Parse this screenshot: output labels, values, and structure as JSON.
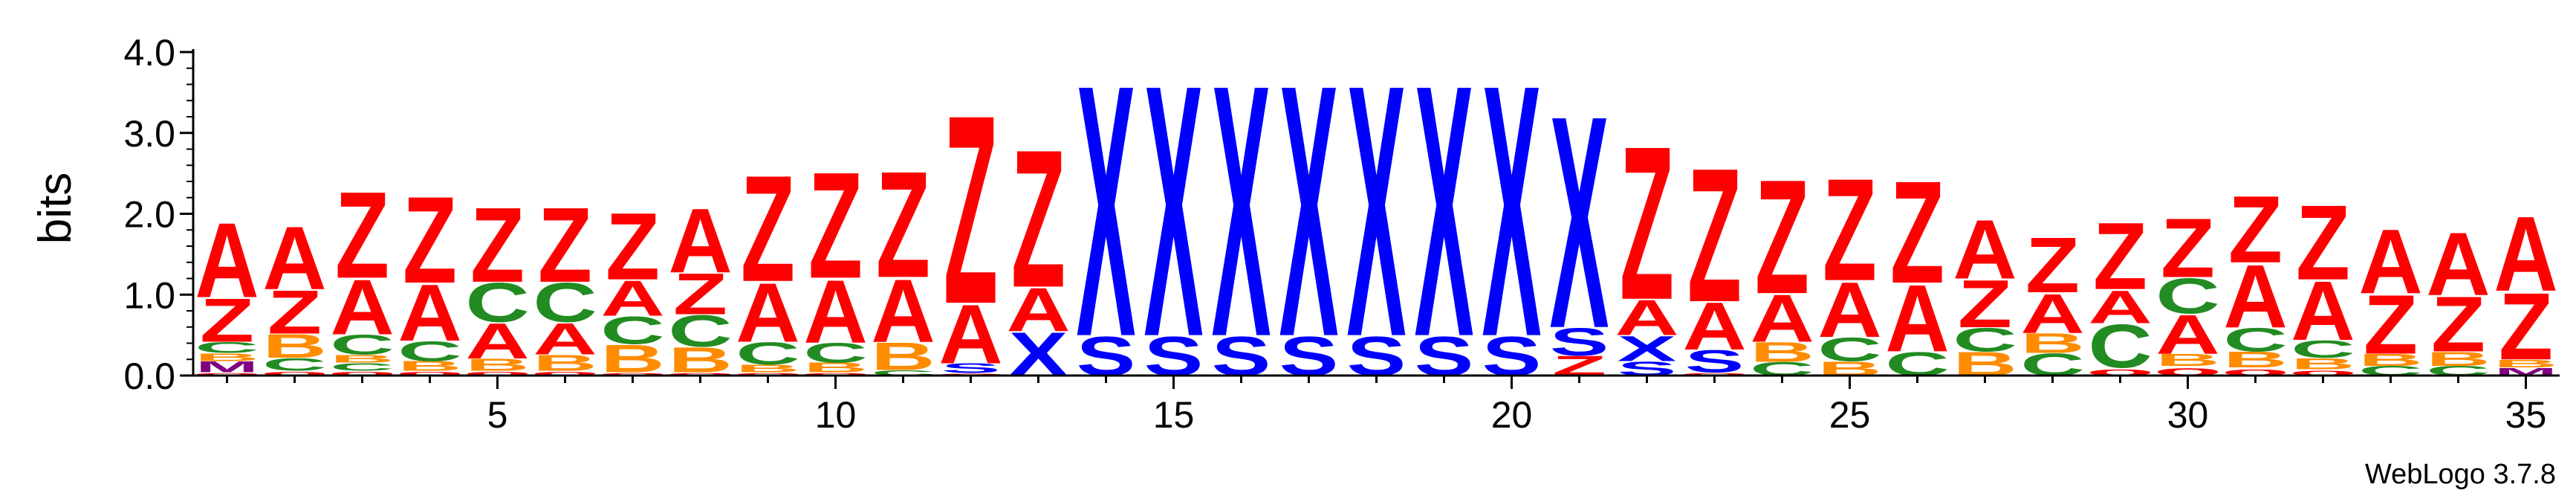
{
  "chart_data": {
    "type": "sequence_logo",
    "ylabel": "bits",
    "credit": "WebLogo 3.7.8",
    "ylim": [
      0,
      4.0
    ],
    "y_ticks": [
      "0.0",
      "1.0",
      "2.0",
      "3.0",
      "4.0"
    ],
    "x_ticks": [
      "5",
      "10",
      "15",
      "20",
      "25",
      "30",
      "35"
    ],
    "x_tick_positions": [
      5,
      10,
      15,
      20,
      25,
      30,
      35
    ],
    "x_range": [
      1,
      35
    ],
    "colors": {
      "A": "#ff0000",
      "Z": "#ff0000",
      "X": "#0000ff",
      "S": "#0000ff",
      "C": "#228b22",
      "B": "#ff8c00",
      "M": "#800080",
      "o": "#ff0000"
    },
    "positions": [
      {
        "pos": 1,
        "stack": [
          [
            "o",
            0.04
          ],
          [
            "M",
            0.14
          ],
          [
            "B",
            0.1
          ],
          [
            "C",
            0.14
          ],
          [
            "Z",
            0.55
          ],
          [
            "A",
            0.95
          ]
        ]
      },
      {
        "pos": 2,
        "stack": [
          [
            "o",
            0.06
          ],
          [
            "C",
            0.16
          ],
          [
            "B",
            0.3
          ],
          [
            "Z",
            0.55
          ],
          [
            "A",
            0.8
          ]
        ]
      },
      {
        "pos": 3,
        "stack": [
          [
            "o",
            0.06
          ],
          [
            "C",
            0.1
          ],
          [
            "B",
            0.1
          ],
          [
            "C",
            0.25
          ],
          [
            "A",
            0.7
          ],
          [
            "Z",
            1.1
          ]
        ]
      },
      {
        "pos": 4,
        "stack": [
          [
            "o",
            0.06
          ],
          [
            "B",
            0.12
          ],
          [
            "C",
            0.25
          ],
          [
            "A",
            0.72
          ],
          [
            "Z",
            1.1
          ]
        ]
      },
      {
        "pos": 5,
        "stack": [
          [
            "o",
            0.06
          ],
          [
            "B",
            0.15
          ],
          [
            "A",
            0.45
          ],
          [
            "C",
            0.5
          ],
          [
            "Z",
            0.95
          ]
        ]
      },
      {
        "pos": 6,
        "stack": [
          [
            "o",
            0.06
          ],
          [
            "B",
            0.2
          ],
          [
            "A",
            0.4
          ],
          [
            "C",
            0.5
          ],
          [
            "Z",
            0.95
          ]
        ]
      },
      {
        "pos": 7,
        "stack": [
          [
            "o",
            0.04
          ],
          [
            "B",
            0.35
          ],
          [
            "C",
            0.35
          ],
          [
            "A",
            0.45
          ],
          [
            "Z",
            0.85
          ]
        ]
      },
      {
        "pos": 8,
        "stack": [
          [
            "o",
            0.04
          ],
          [
            "B",
            0.32
          ],
          [
            "C",
            0.4
          ],
          [
            "Z",
            0.52
          ],
          [
            "A",
            0.82
          ]
        ]
      },
      {
        "pos": 9,
        "stack": [
          [
            "o",
            0.04
          ],
          [
            "B",
            0.1
          ],
          [
            "C",
            0.28
          ],
          [
            "A",
            0.75
          ],
          [
            "Z",
            1.35
          ]
        ]
      },
      {
        "pos": 10,
        "stack": [
          [
            "o",
            0.04
          ],
          [
            "B",
            0.12
          ],
          [
            "C",
            0.25
          ],
          [
            "A",
            0.8
          ],
          [
            "Z",
            1.35
          ]
        ]
      },
      {
        "pos": 11,
        "stack": [
          [
            "C",
            0.07
          ],
          [
            "B",
            0.35
          ],
          [
            "A",
            0.8
          ],
          [
            "Z",
            1.35
          ]
        ]
      },
      {
        "pos": 12,
        "stack": [
          [
            "o",
            0.03
          ],
          [
            "S",
            0.12
          ],
          [
            "A",
            0.75
          ],
          [
            "Z",
            2.4
          ]
        ]
      },
      {
        "pos": 13,
        "stack": [
          [
            "X",
            0.55
          ],
          [
            "A",
            0.55
          ],
          [
            "Z",
            1.75
          ]
        ]
      },
      {
        "pos": 14,
        "stack": [
          [
            "S",
            0.5
          ],
          [
            "X",
            3.2
          ]
        ]
      },
      {
        "pos": 15,
        "stack": [
          [
            "S",
            0.5
          ],
          [
            "X",
            3.2
          ]
        ]
      },
      {
        "pos": 16,
        "stack": [
          [
            "S",
            0.5
          ],
          [
            "X",
            3.2
          ]
        ]
      },
      {
        "pos": 17,
        "stack": [
          [
            "S",
            0.5
          ],
          [
            "X",
            3.2
          ]
        ]
      },
      {
        "pos": 18,
        "stack": [
          [
            "S",
            0.5
          ],
          [
            "X",
            3.2
          ]
        ]
      },
      {
        "pos": 19,
        "stack": [
          [
            "S",
            0.5
          ],
          [
            "X",
            3.2
          ]
        ]
      },
      {
        "pos": 20,
        "stack": [
          [
            "S",
            0.5
          ],
          [
            "X",
            3.2
          ]
        ]
      },
      {
        "pos": 21,
        "stack": [
          [
            "Z",
            0.25
          ],
          [
            "S",
            0.35
          ],
          [
            "X",
            2.7
          ]
        ]
      },
      {
        "pos": 22,
        "stack": [
          [
            "S",
            0.18
          ],
          [
            "X",
            0.32
          ],
          [
            "A",
            0.45
          ],
          [
            "Z",
            1.95
          ]
        ]
      },
      {
        "pos": 23,
        "stack": [
          [
            "o",
            0.04
          ],
          [
            "S",
            0.28
          ],
          [
            "A",
            0.6
          ],
          [
            "Z",
            1.7
          ]
        ]
      },
      {
        "pos": 24,
        "stack": [
          [
            "C",
            0.17
          ],
          [
            "B",
            0.25
          ],
          [
            "A",
            0.6
          ],
          [
            "Z",
            1.45
          ]
        ]
      },
      {
        "pos": 25,
        "stack": [
          [
            "B",
            0.18
          ],
          [
            "C",
            0.3
          ],
          [
            "A",
            0.7
          ],
          [
            "Z",
            1.3
          ]
        ]
      },
      {
        "pos": 26,
        "stack": [
          [
            "C",
            0.3
          ],
          [
            "A",
            0.85
          ],
          [
            "Z",
            1.3
          ]
        ]
      },
      {
        "pos": 27,
        "stack": [
          [
            "B",
            0.3
          ],
          [
            "C",
            0.3
          ],
          [
            "Z",
            0.6
          ],
          [
            "A",
            0.75
          ]
        ]
      },
      {
        "pos": 28,
        "stack": [
          [
            "C",
            0.28
          ],
          [
            "B",
            0.25
          ],
          [
            "A",
            0.5
          ],
          [
            "Z",
            0.7
          ]
        ]
      },
      {
        "pos": 29,
        "stack": [
          [
            "o",
            0.1
          ],
          [
            "C",
            0.55
          ],
          [
            "A",
            0.42
          ],
          [
            "Z",
            0.85
          ]
        ]
      },
      {
        "pos": 30,
        "stack": [
          [
            "o",
            0.12
          ],
          [
            "B",
            0.15
          ],
          [
            "A",
            0.5
          ],
          [
            "C",
            0.45
          ],
          [
            "Z",
            0.75
          ]
        ]
      },
      {
        "pos": 31,
        "stack": [
          [
            "o",
            0.1
          ],
          [
            "B",
            0.2
          ],
          [
            "C",
            0.3
          ],
          [
            "A",
            0.8
          ],
          [
            "Z",
            0.85
          ]
        ]
      },
      {
        "pos": 32,
        "stack": [
          [
            "o",
            0.08
          ],
          [
            "B",
            0.14
          ],
          [
            "C",
            0.22
          ],
          [
            "A",
            0.75
          ],
          [
            "Z",
            0.95
          ]
        ]
      },
      {
        "pos": 33,
        "stack": [
          [
            "C",
            0.12
          ],
          [
            "B",
            0.15
          ],
          [
            "Z",
            0.75
          ],
          [
            "A",
            0.82
          ]
        ]
      },
      {
        "pos": 34,
        "stack": [
          [
            "C",
            0.12
          ],
          [
            "B",
            0.18
          ],
          [
            "Z",
            0.7
          ],
          [
            "A",
            0.8
          ]
        ]
      },
      {
        "pos": 35,
        "stack": [
          [
            "M",
            0.1
          ],
          [
            "B",
            0.1
          ],
          [
            "Z",
            0.85
          ],
          [
            "A",
            0.95
          ]
        ]
      }
    ]
  }
}
